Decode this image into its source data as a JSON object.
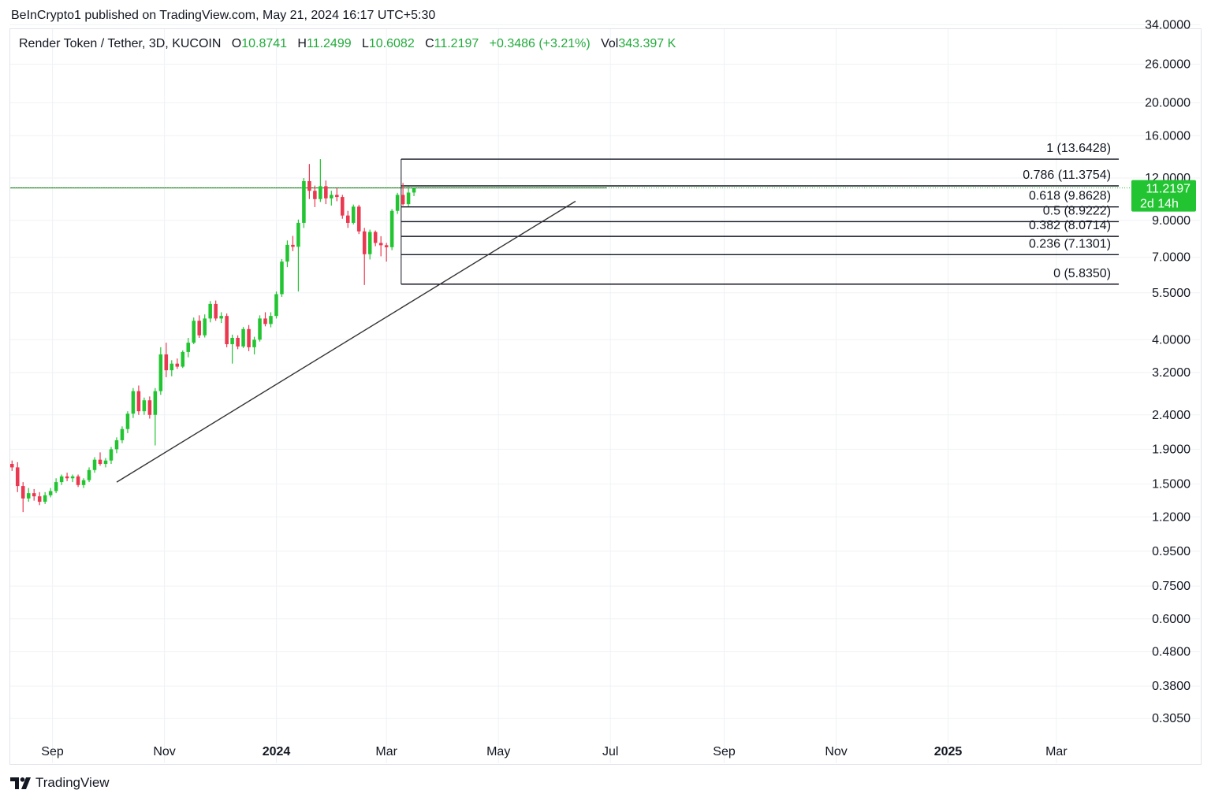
{
  "attribution": "BeInCrypto1 published on TradingView.com, May 21, 2024 16:17 UTC+5:30",
  "footer": {
    "brand": "TradingView"
  },
  "legend": {
    "symbol": "Render Token / Tether, 3D, KUCOIN",
    "o_label": "O",
    "o": "10.8741",
    "h_label": "H",
    "h": "11.2499",
    "l_label": "L",
    "l": "10.6082",
    "c_label": "C",
    "c": "11.2197",
    "change": "+0.3486 (+3.21%)",
    "vol_label": "Vol",
    "vol": "343.397 K"
  },
  "colors": {
    "up": "#22c531",
    "down": "#e9384f",
    "badge": "#22c531",
    "grid": "#f0f2f6",
    "hline": "#1e6e1e",
    "fib": "#131722",
    "trend": "#333333"
  },
  "chart_data": {
    "type": "candlestick",
    "title": "Render Token / Tether, 3D, KUCOIN",
    "y_scale": "log",
    "ylim": [
      0.27,
      33
    ],
    "y_ticks": [
      0.305,
      0.38,
      0.48,
      0.6,
      0.75,
      0.95,
      1.2,
      1.5,
      1.9,
      2.4,
      3.2,
      4.0,
      5.5,
      7.0,
      9.0,
      12.0,
      16.0,
      20.0,
      26.0,
      34.0
    ],
    "y_tick_labels": [
      "0.3050",
      "0.3800",
      "0.4800",
      "0.6000",
      "0.7500",
      "0.9500",
      "1.2000",
      "1.5000",
      "1.9000",
      "2.4000",
      "3.2000",
      "4.0000",
      "5.5000",
      "7.0000",
      "9.0000",
      "12.0000",
      "16.0000",
      "20.0000",
      "26.0000",
      "34.0000"
    ],
    "x_ticks": [
      {
        "date": "2023-09-01",
        "label": "Sep",
        "bold": false
      },
      {
        "date": "2023-11-01",
        "label": "Nov",
        "bold": false
      },
      {
        "date": "2024-01-01",
        "label": "2024",
        "bold": true
      },
      {
        "date": "2024-03-01",
        "label": "Mar",
        "bold": false
      },
      {
        "date": "2024-05-01",
        "label": "May",
        "bold": false
      },
      {
        "date": "2024-07-01",
        "label": "Jul",
        "bold": false
      },
      {
        "date": "2024-09-01",
        "label": "Sep",
        "bold": false
      },
      {
        "date": "2024-11-01",
        "label": "Nov",
        "bold": false
      },
      {
        "date": "2025-01-01",
        "label": "2025",
        "bold": true
      },
      {
        "date": "2025-03-01",
        "label": "Mar",
        "bold": false
      }
    ],
    "x_range": [
      "2023-08-09",
      "2025-04-10"
    ],
    "last_price": {
      "value": 11.2197,
      "label": "11.2197",
      "countdown": "2d 14h"
    },
    "fib_start": "2024-03-09",
    "fib_end": "2025-04-04",
    "fib_levels": [
      {
        "ratio": "1",
        "value": 13.6428,
        "label": "1 (13.6428)"
      },
      {
        "ratio": "0.786",
        "value": 11.3754,
        "label": "0.786 (11.3754)"
      },
      {
        "ratio": "0.618",
        "value": 9.8628,
        "label": "0.618 (9.8628)"
      },
      {
        "ratio": "0.5",
        "value": 8.9222,
        "label": "0.5 (8.9222)"
      },
      {
        "ratio": "0.382",
        "value": 8.0714,
        "label": "0.382 (8.0714)"
      },
      {
        "ratio": "0.236",
        "value": 7.1301,
        "label": "0.236 (7.1301)"
      },
      {
        "ratio": "0",
        "value": 5.835,
        "label": "0 (5.8350)"
      }
    ],
    "horizontal_line": {
      "value": 11.22,
      "from": "2023-08-09",
      "to": "2024-06-29"
    },
    "trendline": {
      "from": {
        "date": "2023-10-06",
        "value": 1.52
      },
      "to": {
        "date": "2024-06-12",
        "value": 10.25
      }
    },
    "candle_start": "2023-08-09",
    "candle_interval_days": 3,
    "candles": [
      [
        1.72,
        1.76,
        1.64,
        1.68
      ],
      [
        1.68,
        1.74,
        1.42,
        1.48
      ],
      [
        1.48,
        1.52,
        1.24,
        1.36
      ],
      [
        1.36,
        1.46,
        1.33,
        1.41
      ],
      [
        1.41,
        1.45,
        1.34,
        1.38
      ],
      [
        1.38,
        1.42,
        1.3,
        1.33
      ],
      [
        1.33,
        1.42,
        1.31,
        1.39
      ],
      [
        1.39,
        1.46,
        1.37,
        1.43
      ],
      [
        1.43,
        1.56,
        1.41,
        1.52
      ],
      [
        1.52,
        1.6,
        1.49,
        1.58
      ],
      [
        1.58,
        1.62,
        1.53,
        1.56
      ],
      [
        1.56,
        1.6,
        1.52,
        1.58
      ],
      [
        1.58,
        1.6,
        1.47,
        1.49
      ],
      [
        1.49,
        1.56,
        1.46,
        1.54
      ],
      [
        1.54,
        1.68,
        1.52,
        1.65
      ],
      [
        1.65,
        1.8,
        1.62,
        1.77
      ],
      [
        1.77,
        1.86,
        1.7,
        1.72
      ],
      [
        1.72,
        1.79,
        1.68,
        1.76
      ],
      [
        1.76,
        1.93,
        1.72,
        1.9
      ],
      [
        1.9,
        2.06,
        1.85,
        2.02
      ],
      [
        2.02,
        2.22,
        1.98,
        2.18
      ],
      [
        2.18,
        2.46,
        2.12,
        2.42
      ],
      [
        2.42,
        2.88,
        2.35,
        2.82
      ],
      [
        2.82,
        2.93,
        2.4,
        2.46
      ],
      [
        2.46,
        2.7,
        2.4,
        2.65
      ],
      [
        2.65,
        2.72,
        2.34,
        2.4
      ],
      [
        2.4,
        2.88,
        1.95,
        2.82
      ],
      [
        2.82,
        3.8,
        2.75,
        3.62
      ],
      [
        3.62,
        3.92,
        3.1,
        3.25
      ],
      [
        3.25,
        3.48,
        3.12,
        3.4
      ],
      [
        3.4,
        3.52,
        3.28,
        3.33
      ],
      [
        3.33,
        3.72,
        3.3,
        3.68
      ],
      [
        3.68,
        4.05,
        3.55,
        3.92
      ],
      [
        3.92,
        4.65,
        3.88,
        4.55
      ],
      [
        4.55,
        4.72,
        4.05,
        4.12
      ],
      [
        4.12,
        4.75,
        4.06,
        4.62
      ],
      [
        4.62,
        5.2,
        4.5,
        5.1
      ],
      [
        5.1,
        5.22,
        4.55,
        4.62
      ],
      [
        4.62,
        4.82,
        4.48,
        4.7
      ],
      [
        4.7,
        4.78,
        3.8,
        3.88
      ],
      [
        3.88,
        4.14,
        3.4,
        4.05
      ],
      [
        4.05,
        4.12,
        3.75,
        3.82
      ],
      [
        3.82,
        4.36,
        3.78,
        4.3
      ],
      [
        4.3,
        4.42,
        3.7,
        3.8
      ],
      [
        3.8,
        4.08,
        3.62,
        4.0
      ],
      [
        4.0,
        4.72,
        3.95,
        4.62
      ],
      [
        4.62,
        4.82,
        4.38,
        4.45
      ],
      [
        4.45,
        4.82,
        4.35,
        4.7
      ],
      [
        4.7,
        5.55,
        4.62,
        5.45
      ],
      [
        5.45,
        6.92,
        5.35,
        6.8
      ],
      [
        6.8,
        7.85,
        6.55,
        7.62
      ],
      [
        7.62,
        8.1,
        7.3,
        7.52
      ],
      [
        7.52,
        9.05,
        5.55,
        8.85
      ],
      [
        8.85,
        12.0,
        8.55,
        11.75
      ],
      [
        11.75,
        13.2,
        10.4,
        11.0
      ],
      [
        11.0,
        11.4,
        9.85,
        10.4
      ],
      [
        10.4,
        13.64,
        10.2,
        11.35
      ],
      [
        11.35,
        11.8,
        10.05,
        10.45
      ],
      [
        10.45,
        11.0,
        9.95,
        10.7
      ],
      [
        10.7,
        11.2,
        10.25,
        10.55
      ],
      [
        10.55,
        10.7,
        9.1,
        9.3
      ],
      [
        9.3,
        9.6,
        8.55,
        8.85
      ],
      [
        8.85,
        10.02,
        8.75,
        9.88
      ],
      [
        9.88,
        10.0,
        8.2,
        8.35
      ],
      [
        8.35,
        8.55,
        5.8,
        7.15
      ],
      [
        7.15,
        8.45,
        6.9,
        8.32
      ],
      [
        8.32,
        8.4,
        7.55,
        7.72
      ],
      [
        7.72,
        8.08,
        7.05,
        7.6
      ],
      [
        7.6,
        7.72,
        6.8,
        7.5
      ],
      [
        7.5,
        9.72,
        7.35,
        9.6
      ],
      [
        9.6,
        10.85,
        9.4,
        10.7
      ],
      [
        10.7,
        11.6,
        9.95,
        10.05
      ],
      [
        10.05,
        11.3,
        9.9,
        10.87
      ],
      [
        10.874,
        11.2499,
        10.6082,
        11.2197
      ]
    ]
  }
}
